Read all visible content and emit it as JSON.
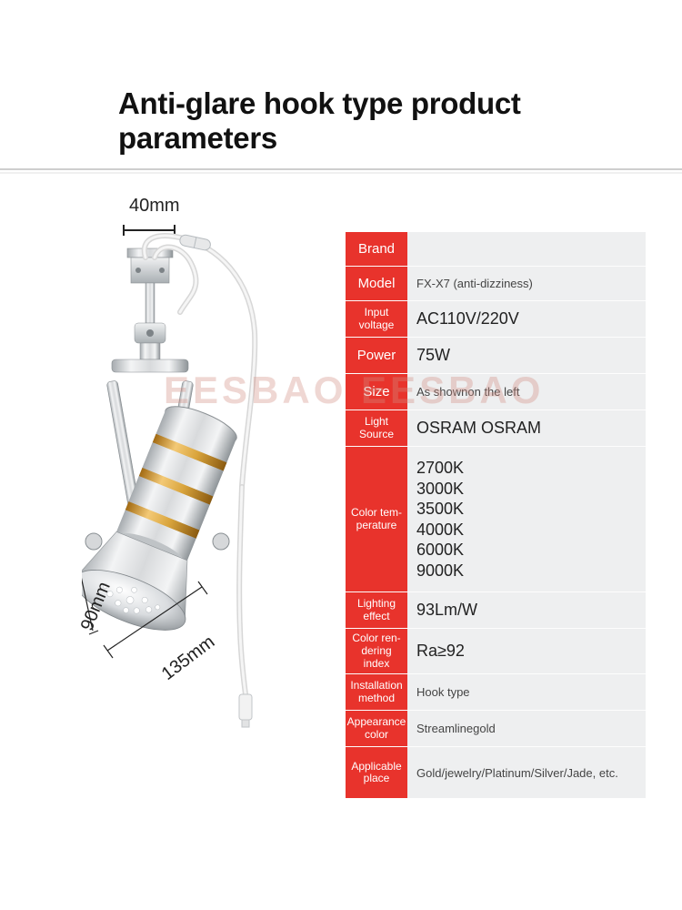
{
  "title": "Anti-glare hook type product parameters",
  "watermark": "EESBAO  EESBAO",
  "dimensions": {
    "top": "40mm",
    "left": "90mm",
    "diag": "135mm"
  },
  "label_bg_color": "#e8332c",
  "value_bg_color": "#eeeff0",
  "rows": [
    {
      "label": "Brand",
      "value": "",
      "label_size": "big",
      "row_h": "h36",
      "val_cls": ""
    },
    {
      "label": "Model",
      "value": "FX-X7 (anti-dizziness)",
      "label_size": "big",
      "row_h": "h36",
      "val_cls": "sm"
    },
    {
      "label": "Input voltage",
      "value": "AC110V/220V",
      "label_size": "",
      "row_h": "h40",
      "val_cls": ""
    },
    {
      "label": "Power",
      "value": "75W",
      "label_size": "big",
      "row_h": "h40",
      "val_cls": ""
    },
    {
      "label": "Size",
      "value": "As shown\non the left",
      "label_size": "big",
      "row_h": "h40",
      "val_cls": "sm"
    },
    {
      "label": "Light\nSource",
      "value": "OSRAM OSRAM",
      "label_size": "",
      "row_h": "h40",
      "val_cls": ""
    },
    {
      "label": "Color tem-\nperature",
      "value": "2700K\n3000K\n3500K\n4000K\n6000K\n9000K",
      "label_size": "",
      "row_h": "h140",
      "val_cls": "multi"
    },
    {
      "label": "Lighting\neffect",
      "value": "93Lm/W",
      "label_size": "",
      "row_h": "h40",
      "val_cls": ""
    },
    {
      "label": "Color ren-\ndering index",
      "value": "Ra≥92",
      "label_size": "",
      "row_h": "h40",
      "val_cls": ""
    },
    {
      "label": "Installation\nmethod",
      "value": "Hook type",
      "label_size": "",
      "row_h": "h40",
      "val_cls": "sm"
    },
    {
      "label": "Appearance\ncolor",
      "value": "Streamline\ngold",
      "label_size": "",
      "row_h": "h40",
      "val_cls": "sm"
    },
    {
      "label": "Applicable\nplace",
      "value": "Gold/jewelry/Platinum/Silver/Jade, etc.",
      "label_size": "",
      "row_h": "h56",
      "val_cls": "sm"
    }
  ],
  "colors": {
    "body_silver_light": "#e8eaec",
    "body_silver_mid": "#c7cacd",
    "body_silver_dark": "#9ea3a7",
    "gold_light": "#f0c268",
    "gold_dark": "#b47b1e",
    "wire": "#f4f4f4",
    "wire_edge": "#c9c9c9",
    "bracket": "#bfc4c8",
    "bracket_dark": "#8d9599"
  }
}
